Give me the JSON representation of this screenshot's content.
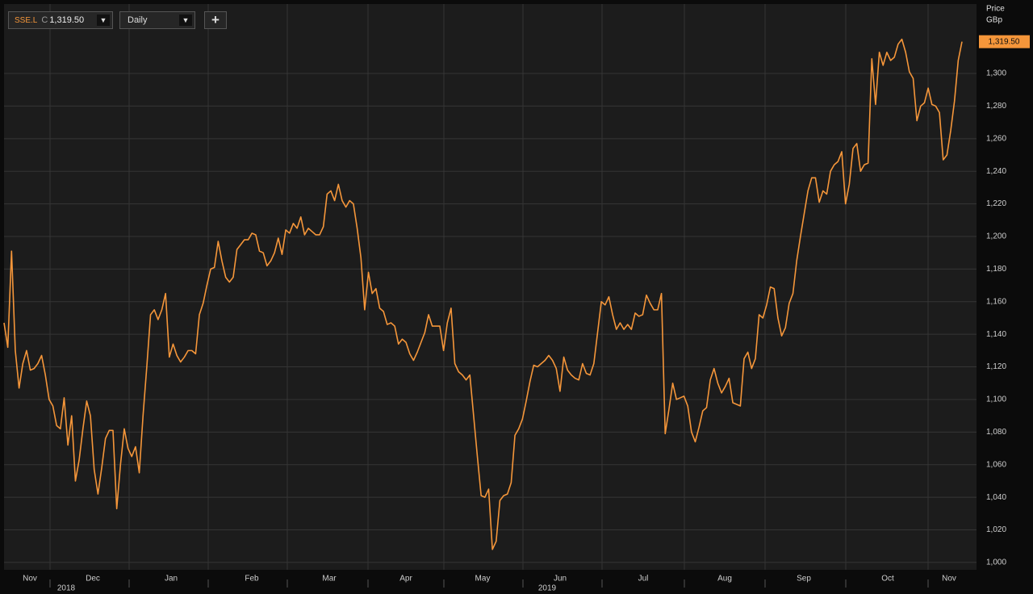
{
  "toolbar": {
    "symbol": "SSE.L",
    "close_prefix": "C",
    "close": "1,319.50",
    "interval": "Daily",
    "add_button": "+"
  },
  "chart_data": {
    "type": "line",
    "axis_title": "Price",
    "axis_unit": "GBp",
    "color": "#f5963a",
    "grid": true,
    "months": [
      "Nov",
      "Dec",
      "Jan",
      "Feb",
      "Mar",
      "Apr",
      "May",
      "Jun",
      "Jul",
      "Aug",
      "Sep",
      "Oct",
      "Nov"
    ],
    "years": [
      "2018",
      "2019"
    ],
    "last_value_label": "1,319.50",
    "ylim": [
      995.5,
      1342.6
    ],
    "yticks": [
      {
        "value": 1000,
        "label": "1,000"
      },
      {
        "value": 1020,
        "label": "1,020"
      },
      {
        "value": 1040,
        "label": "1,040"
      },
      {
        "value": 1060,
        "label": "1,060"
      },
      {
        "value": 1080,
        "label": "1,080"
      },
      {
        "value": 1100,
        "label": "1,100"
      },
      {
        "value": 1120,
        "label": "1,120"
      },
      {
        "value": 1140,
        "label": "1,140"
      },
      {
        "value": 1160,
        "label": "1,160"
      },
      {
        "value": 1180,
        "label": "1,180"
      },
      {
        "value": 1200,
        "label": "1,200"
      },
      {
        "value": 1220,
        "label": "1,220"
      },
      {
        "value": 1240,
        "label": "1,240"
      },
      {
        "value": 1260,
        "label": "1,260"
      },
      {
        "value": 1280,
        "label": "1,280"
      },
      {
        "value": 1300,
        "label": "1,300"
      }
    ],
    "values": [
      1147,
      1132,
      1191,
      1130,
      1107,
      1122,
      1130,
      1118,
      1119,
      1122,
      1127,
      1115,
      1100,
      1096,
      1084,
      1082,
      1101,
      1072,
      1090,
      1050,
      1063,
      1082,
      1099,
      1090,
      1057,
      1042,
      1058,
      1076,
      1081,
      1081,
      1033,
      1060,
      1082,
      1070,
      1065,
      1071,
      1055,
      1090,
      1120,
      1152,
      1155,
      1149,
      1155,
      1165,
      1126,
      1134,
      1127,
      1123,
      1126,
      1130,
      1130,
      1128,
      1152,
      1159,
      1170,
      1180,
      1181,
      1197,
      1185,
      1175,
      1172,
      1175,
      1192,
      1195,
      1198,
      1198,
      1202,
      1201,
      1191,
      1190,
      1182,
      1185,
      1190,
      1199,
      1189,
      1204,
      1202,
      1208,
      1205,
      1212,
      1201,
      1205,
      1203,
      1201,
      1201,
      1206,
      1226,
      1228,
      1222,
      1232,
      1222,
      1218,
      1222,
      1220,
      1205,
      1187,
      1155,
      1178,
      1165,
      1168,
      1156,
      1154,
      1146,
      1147,
      1145,
      1134,
      1137,
      1135,
      1128,
      1124,
      1129,
      1135,
      1141,
      1152,
      1145,
      1145,
      1145,
      1130,
      1147,
      1156,
      1122,
      1117,
      1115,
      1112,
      1115,
      1090,
      1065,
      1041,
      1040,
      1045,
      1008,
      1013,
      1038,
      1041,
      1042,
      1049,
      1078,
      1082,
      1088,
      1099,
      1111,
      1121,
      1120,
      1122,
      1124,
      1127,
      1124,
      1119,
      1105,
      1126,
      1118,
      1115,
      1113,
      1112,
      1122,
      1116,
      1115,
      1122,
      1141,
      1160,
      1158,
      1163,
      1152,
      1143,
      1147,
      1143,
      1146,
      1143,
      1153,
      1151,
      1152,
      1164,
      1159,
      1155,
      1155,
      1165,
      1079,
      1094,
      1110,
      1100,
      1101,
      1102,
      1096,
      1080,
      1074,
      1083,
      1093,
      1095,
      1112,
      1119,
      1110,
      1104,
      1108,
      1113,
      1098,
      1097,
      1096,
      1125,
      1129,
      1119,
      1125,
      1152,
      1150,
      1158,
      1169,
      1168,
      1150,
      1139,
      1144,
      1159,
      1165,
      1185,
      1200,
      1214,
      1228,
      1236,
      1236,
      1221,
      1228,
      1226,
      1240,
      1244,
      1246,
      1252,
      1220,
      1232,
      1254,
      1257,
      1240,
      1244,
      1245,
      1309,
      1281,
      1313,
      1305,
      1313,
      1308,
      1310,
      1318,
      1321,
      1313,
      1301,
      1297,
      1271,
      1280,
      1282,
      1291,
      1281,
      1280,
      1276,
      1247,
      1250,
      1265,
      1283,
      1308,
      1319.5
    ]
  }
}
